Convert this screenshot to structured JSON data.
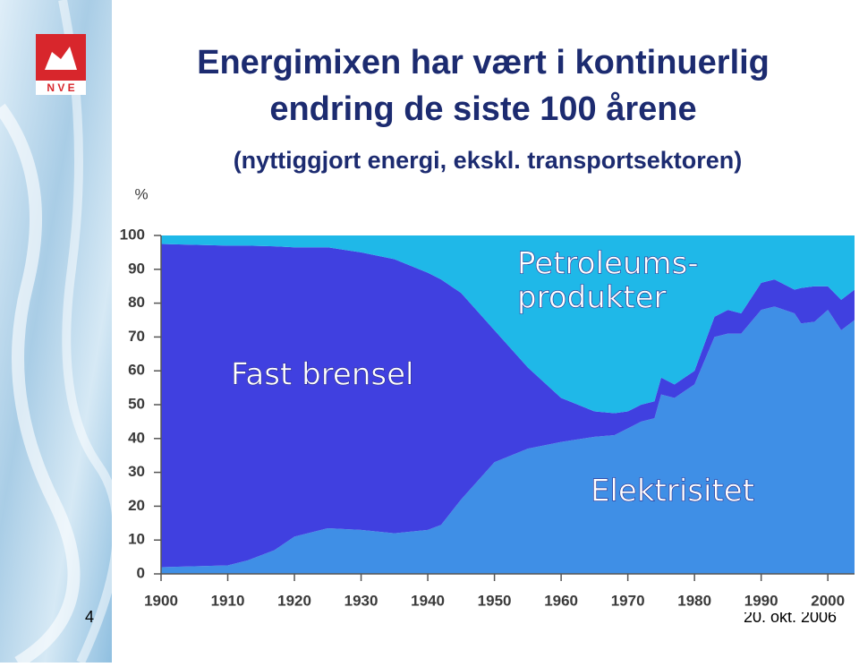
{
  "logo": {
    "text": "N V E"
  },
  "title_lines": [
    "Energimixen har vært i kontinuerlig",
    "endring de siste 100 årene"
  ],
  "subtitle": "(nyttiggjort energi, ekskl. transportsektoren)",
  "footer": {
    "page": "4",
    "date": "20. okt. 2006"
  },
  "chart_data": {
    "type": "stacked-area",
    "ylabel": "%",
    "x": [
      1900,
      1910,
      1913,
      1917,
      1920,
      1925,
      1930,
      1935,
      1940,
      1942,
      1945,
      1950,
      1955,
      1960,
      1965,
      1968,
      1970,
      1972,
      1974,
      1975,
      1977,
      1980,
      1983,
      1985,
      1987,
      1990,
      1992,
      1995,
      1996,
      1998,
      2000,
      2002,
      2004
    ],
    "series": [
      {
        "name": "Elektrisitet",
        "color": "#3f8fe6",
        "values": [
          2,
          2.5,
          4,
          7,
          11,
          13.5,
          13,
          12,
          13,
          14.5,
          22,
          33,
          37,
          39,
          40.5,
          41,
          43,
          45,
          46,
          53,
          52,
          56,
          70,
          71,
          71,
          78,
          79,
          77,
          74,
          74.5,
          78,
          72,
          75
        ]
      },
      {
        "name": "Fast brensel",
        "color": "#4040e0",
        "values": [
          95.5,
          94.5,
          93,
          89.8,
          85.5,
          83,
          82,
          81,
          76,
          72.5,
          61,
          39,
          24,
          13,
          7.5,
          6.5,
          5,
          5,
          5,
          5,
          4,
          4,
          6,
          7,
          6,
          8,
          8,
          7,
          10.5,
          10.5,
          7,
          9,
          9
        ]
      },
      {
        "name": [
          "Petroleums-",
          "produkter"
        ],
        "color": "#1fb8e8",
        "values": [
          2.5,
          3,
          3,
          3.2,
          3.5,
          3.5,
          5,
          7,
          11,
          13,
          17,
          28,
          39,
          48,
          52,
          52.5,
          52,
          50,
          49,
          42,
          44,
          40,
          24,
          22,
          23,
          14,
          13,
          16,
          15.5,
          15,
          15,
          19,
          16
        ]
      }
    ],
    "xlim": [
      1900,
      2004
    ],
    "ylim": [
      0,
      100
    ],
    "xticks": [
      1900,
      1910,
      1920,
      1930,
      1940,
      1950,
      1960,
      1970,
      1980,
      1990,
      2000
    ],
    "yticks": [
      0,
      10,
      20,
      30,
      40,
      50,
      60,
      70,
      80,
      90,
      100
    ]
  }
}
